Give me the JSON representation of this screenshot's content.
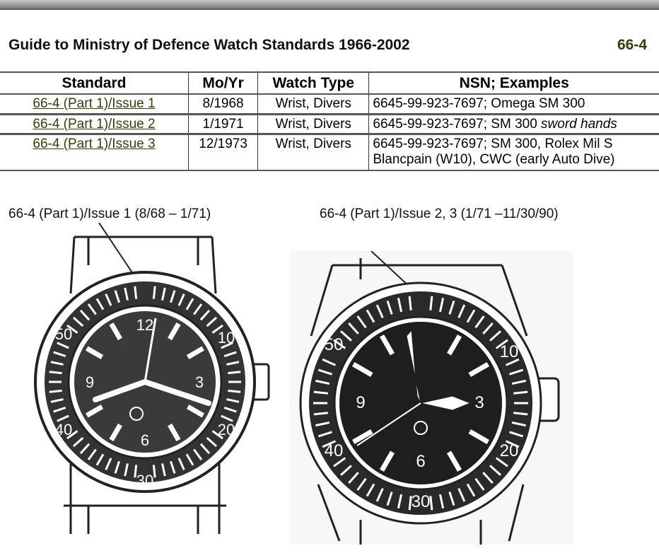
{
  "header": {
    "title": "Guide to Ministry of Defence Watch Standards 1966-2002",
    "code": "66-4"
  },
  "table": {
    "columns": [
      "Standard",
      "Mo/Yr",
      "Watch Type",
      "NSN; Examples"
    ],
    "rows": [
      {
        "standard": "66-4 (Part 1)/Issue 1",
        "moyr": "8/1968",
        "type": "Wrist, Divers",
        "nsn": "6645-99-923-7697; Omega SM 300",
        "nsn_italic": "",
        "nsn2": ""
      },
      {
        "standard": "66-4 (Part 1)/Issue 2",
        "moyr": "1/1971",
        "type": "Wrist, Divers",
        "nsn": "6645-99-923-7697; SM 300 ",
        "nsn_italic": "sword hands",
        "nsn2": ""
      },
      {
        "standard": "66-4 (Part 1)/Issue 3",
        "moyr": "12/1973",
        "type": "Wrist, Divers",
        "nsn": "6645-99-923-7697; SM 300, Rolex Mil S",
        "nsn_italic": "",
        "nsn2": "Blancpain (W10), CWC (early Auto Dive)"
      }
    ]
  },
  "figures": [
    {
      "caption": "66-4 (Part 1)/Issue 1 (8/68 – 1/71)",
      "bezel": [
        "10",
        "20",
        "30",
        "40",
        "50"
      ],
      "dial": [
        "12",
        "3",
        "6",
        "9"
      ]
    },
    {
      "caption": "66-4 (Part 1)/Issue 2, 3 (1/71 –11/30/90)",
      "bezel": [
        "10",
        "20",
        "30",
        "40",
        "50"
      ],
      "dial": [
        "3",
        "6",
        "9"
      ]
    }
  ],
  "colors": {
    "link": "#3b3b0e",
    "ink": "#111111"
  }
}
